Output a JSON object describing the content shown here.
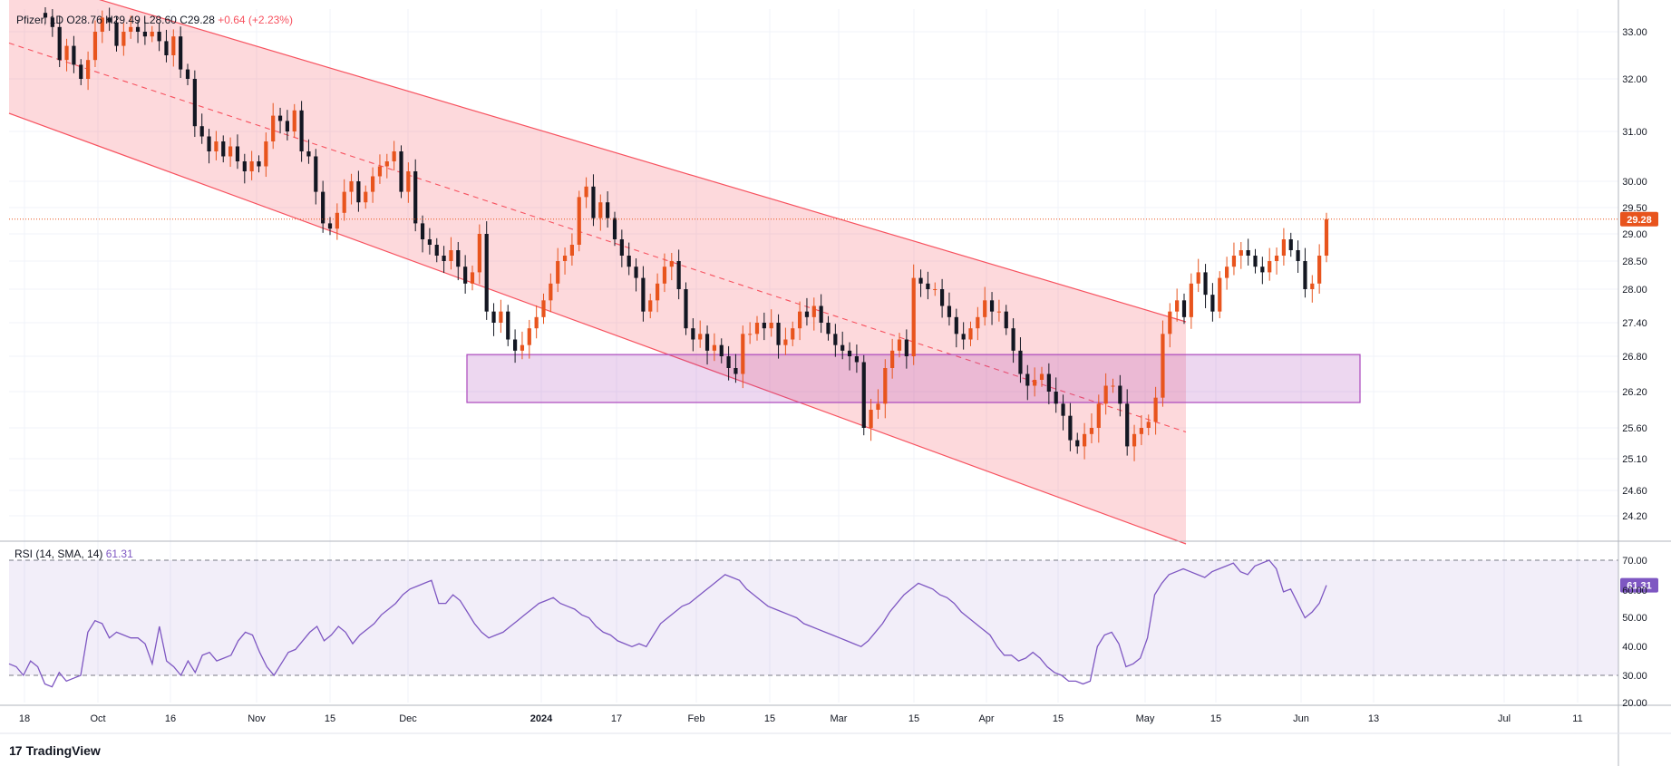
{
  "header": {
    "symbol": "Pfizer, 1D",
    "open": "O28.76",
    "high": "H29.49",
    "low": "L28.60",
    "close": "C29.28",
    "change": "+0.64 (+2.23%)"
  },
  "rsi_header": {
    "label": "RSI (14, SMA, 14)",
    "value": "61.31"
  },
  "brand": {
    "name": "TradingView"
  },
  "colors": {
    "bull": "#e8541d",
    "bear": "#131722",
    "channel": "#f7525f",
    "zone": "#ab47bc",
    "rsi": "#7e57c2",
    "last_price": "#e8541d"
  },
  "chart_data": [
    {
      "type": "candlestick",
      "title": "Pfizer, 1D",
      "price_axis_ticks": [
        "33.00",
        "32.00",
        "31.00",
        "30.00",
        "29.50",
        "29.00",
        "28.50",
        "28.00",
        "27.40",
        "26.80",
        "26.20",
        "25.60",
        "25.10",
        "24.60",
        "24.20"
      ],
      "time_axis_ticks": [
        "18",
        "Oct",
        "16",
        "Nov",
        "15",
        "Dec",
        "2024",
        "17",
        "Feb",
        "15",
        "Mar",
        "15",
        "Apr",
        "15",
        "May",
        "15",
        "Jun",
        "13",
        "Jul",
        "11"
      ],
      "last_price_label": "29.28",
      "ylim": [
        23.7,
        33.4
      ],
      "closes": [
        33.3,
        33.1,
        32.4,
        32.7,
        32.3,
        32.0,
        32.4,
        33.0,
        33.3,
        33.2,
        32.7,
        33.0,
        33.1,
        33.0,
        32.9,
        33.0,
        32.8,
        32.5,
        32.9,
        32.2,
        32.0,
        31.1,
        30.9,
        30.6,
        30.8,
        30.5,
        30.7,
        30.4,
        30.2,
        30.4,
        30.3,
        30.8,
        31.3,
        31.2,
        31.0,
        31.4,
        30.6,
        30.5,
        29.8,
        29.2,
        29.1,
        29.4,
        29.8,
        30.0,
        29.6,
        29.8,
        30.1,
        30.3,
        30.4,
        30.6,
        29.8,
        30.2,
        29.2,
        28.9,
        28.8,
        28.6,
        28.5,
        28.7,
        28.4,
        28.1,
        28.3,
        29.0,
        27.6,
        27.4,
        27.6,
        27.1,
        26.9,
        27.0,
        27.3,
        27.5,
        27.8,
        28.1,
        28.5,
        28.6,
        28.8,
        29.7,
        29.9,
        29.3,
        29.6,
        29.3,
        28.9,
        28.6,
        28.4,
        28.2,
        27.6,
        27.8,
        28.1,
        28.4,
        28.5,
        28.0,
        27.3,
        27.1,
        27.2,
        26.9,
        27.0,
        26.8,
        26.6,
        26.5,
        27.2,
        27.2,
        27.4,
        27.3,
        27.4,
        27.0,
        27.1,
        27.3,
        27.6,
        27.5,
        27.7,
        27.4,
        27.2,
        27.0,
        26.9,
        26.8,
        26.7,
        25.6,
        25.9,
        26.0,
        26.6,
        26.9,
        27.1,
        26.8,
        28.2,
        28.1,
        28.0,
        28.0,
        27.7,
        27.5,
        27.2,
        27.1,
        27.3,
        27.5,
        27.8,
        27.6,
        27.6,
        27.3,
        26.9,
        26.5,
        26.3,
        26.4,
        26.5,
        26.2,
        26.0,
        25.8,
        25.4,
        25.3,
        25.5,
        25.6,
        26.0,
        26.3,
        26.3,
        26.0,
        25.3,
        25.5,
        25.6,
        25.7,
        26.1,
        27.2,
        27.6,
        27.8,
        27.5,
        28.1,
        28.3,
        27.9,
        27.6,
        28.2,
        28.4,
        28.6,
        28.7,
        28.6,
        28.4,
        28.3,
        28.5,
        28.6,
        28.9,
        28.7,
        28.5,
        28.0,
        28.1,
        28.6,
        29.28
      ],
      "rsi": {
        "label": "RSI (14, SMA, 14)",
        "last": 61.31,
        "levels": [
          70,
          30
        ],
        "axis_ticks": [
          "70.00",
          "60.00",
          "50.00",
          "40.00",
          "30.00",
          "20.00"
        ],
        "ylim": [
          17,
          73
        ],
        "values": [
          34,
          33,
          30,
          35,
          33,
          27,
          26,
          31,
          28,
          29,
          30,
          45,
          49,
          48,
          43,
          45,
          44,
          43,
          43,
          41,
          34,
          47,
          35,
          33,
          30,
          35,
          31,
          37,
          38,
          35,
          36,
          37,
          42,
          45,
          44,
          38,
          33,
          30,
          34,
          38,
          39,
          42,
          45,
          47,
          42,
          44,
          47,
          45,
          41,
          44,
          46,
          48,
          51,
          53,
          55,
          58,
          60,
          61,
          62,
          63,
          55,
          55,
          58,
          56,
          52,
          48,
          45,
          43,
          44,
          45,
          47,
          49,
          51,
          53,
          55,
          56,
          57,
          55,
          54,
          53,
          51,
          50,
          47,
          45,
          44,
          42,
          41,
          40,
          41,
          40,
          44,
          48,
          50,
          52,
          54,
          55,
          57,
          59,
          61,
          63,
          65,
          64,
          63,
          60,
          58,
          56,
          54,
          53,
          52,
          51,
          50,
          48,
          47,
          46,
          45,
          44,
          43,
          42,
          41,
          40,
          42,
          45,
          48,
          52,
          55,
          58,
          60,
          62,
          61,
          60,
          58,
          57,
          55,
          52,
          50,
          48,
          46,
          44,
          40,
          37,
          37,
          35,
          36,
          38,
          36,
          33,
          31,
          30,
          28,
          28,
          27,
          28,
          40,
          44,
          45,
          41,
          33,
          34,
          36,
          43,
          58,
          62,
          65,
          66,
          67,
          66,
          65,
          64,
          66,
          67,
          68,
          69,
          66,
          65,
          68,
          69,
          70,
          67,
          59,
          60,
          55,
          50,
          52,
          55,
          61.31
        ]
      },
      "drawings": {
        "descending_channel": {
          "start_date": "Sep 18",
          "end_date": "May 10"
        },
        "support_zone": {
          "low": 26.02,
          "high": 26.83,
          "start_date": "Dec 21",
          "end_date": "Jun 10"
        }
      }
    }
  ]
}
